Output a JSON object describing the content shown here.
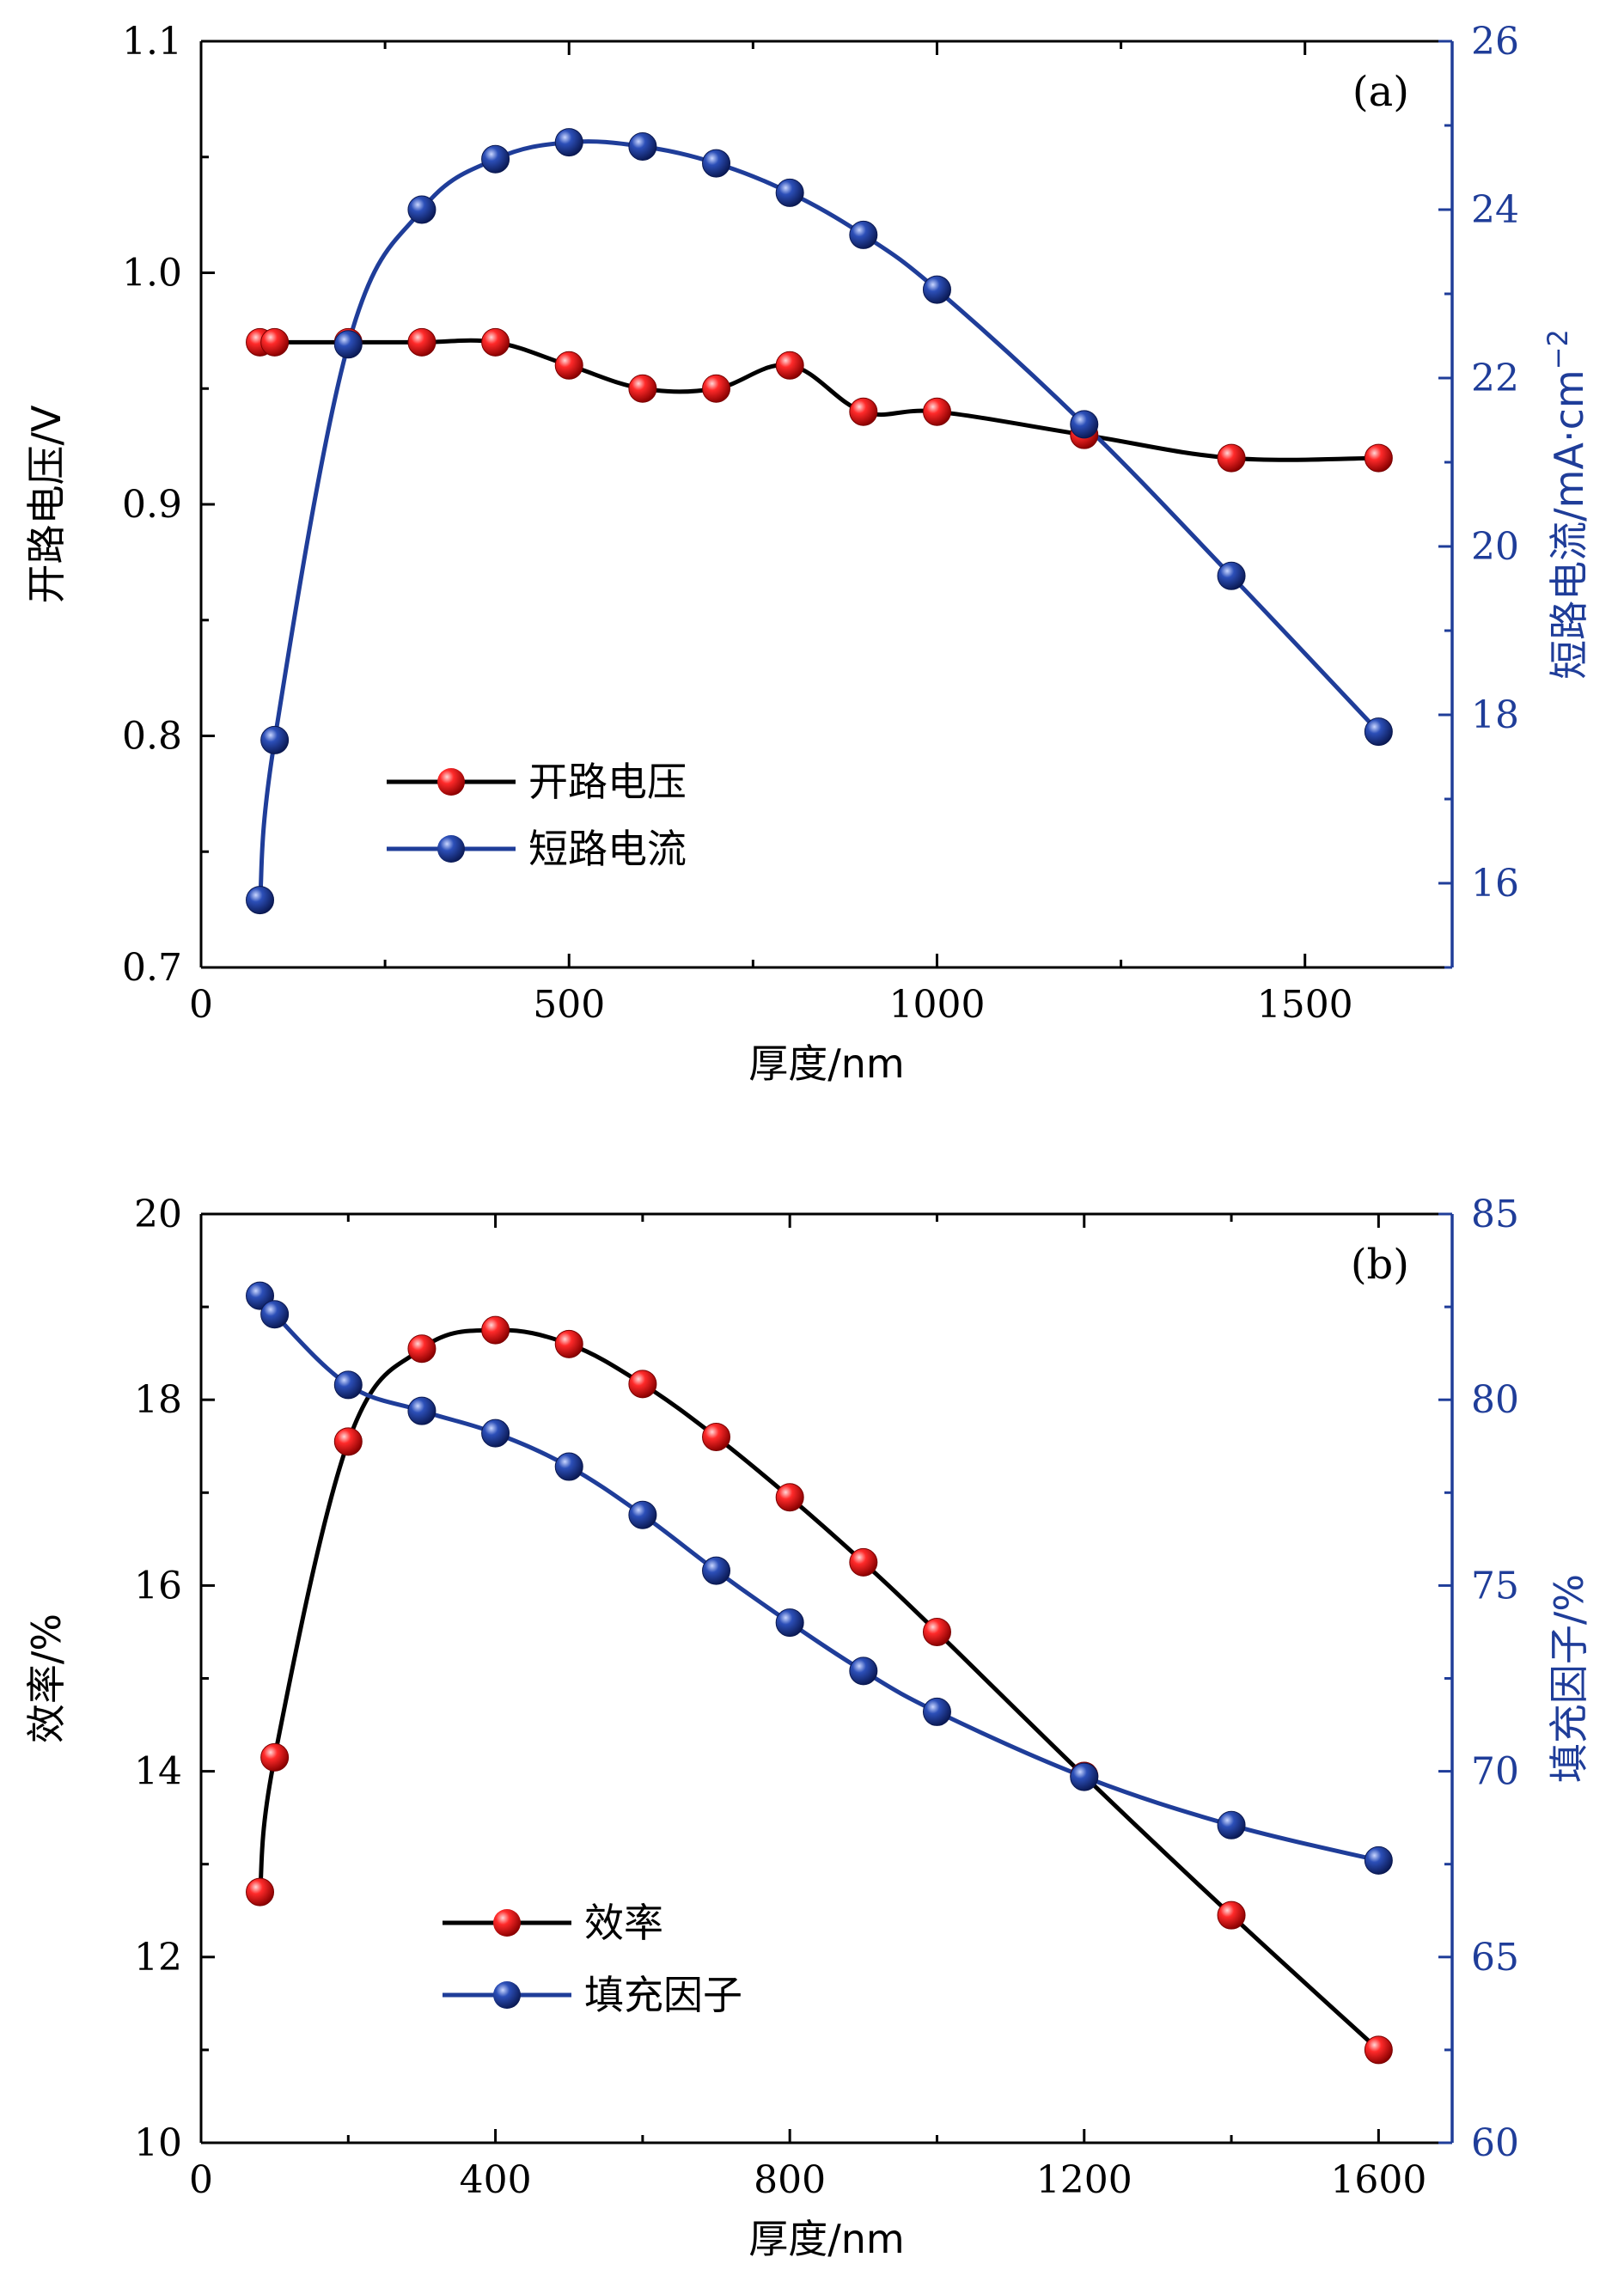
{
  "colors": {
    "black": "#000000",
    "blue": "#1f3d99",
    "red": "#e01010"
  },
  "chart_data": [
    {
      "type": "line",
      "panel_label": "(a)",
      "xlabel": "厚度/nm",
      "ylabel": "开路电压/V",
      "ylabel_right": "短路电流/mA·cm",
      "ylabel_right_sup": "−2",
      "xlim": [
        0,
        1700
      ],
      "ylim": [
        0.7,
        1.1
      ],
      "ylim_right": [
        15,
        26
      ],
      "x_ticks": [
        0,
        500,
        1000,
        1500
      ],
      "x_tick_labels": [
        "0",
        "500",
        "1000",
        "1500"
      ],
      "y_ticks": [
        0.7,
        0.8,
        0.9,
        1.0,
        1.1
      ],
      "y_tick_labels": [
        "0.7",
        "0.8",
        "0.9",
        "1.0",
        "1.1"
      ],
      "y_right_ticks": [
        16,
        18,
        20,
        22,
        24,
        26
      ],
      "y_right_tick_labels": [
        "16",
        "18",
        "20",
        "22",
        "24",
        "26"
      ],
      "legend_position": "bottom-left",
      "series": [
        {
          "name": "开路电压",
          "axis": "left",
          "color": "#000000",
          "marker": "red",
          "x": [
            80,
            100,
            200,
            300,
            400,
            500,
            600,
            700,
            800,
            900,
            1000,
            1200,
            1400,
            1600
          ],
          "y": [
            0.97,
            0.97,
            0.97,
            0.97,
            0.97,
            0.96,
            0.95,
            0.95,
            0.96,
            0.94,
            0.94,
            0.93,
            0.92,
            0.92
          ]
        },
        {
          "name": "短路电流",
          "axis": "right",
          "color": "#1f3d99",
          "marker": "blue",
          "x": [
            80,
            100,
            200,
            300,
            400,
            500,
            600,
            700,
            800,
            900,
            1000,
            1200,
            1400,
            1600
          ],
          "y": [
            15.8,
            17.7,
            22.4,
            24.0,
            24.6,
            24.8,
            24.75,
            24.55,
            24.2,
            23.7,
            23.05,
            21.45,
            19.65,
            17.8
          ]
        }
      ]
    },
    {
      "type": "line",
      "panel_label": "(b)",
      "xlabel": "厚度/nm",
      "ylabel": "效率/%",
      "ylabel_right": "填充因子/%",
      "xlim": [
        0,
        1700
      ],
      "ylim": [
        10,
        20
      ],
      "ylim_right": [
        60,
        85
      ],
      "x_ticks": [
        0,
        400,
        800,
        1200,
        1600
      ],
      "x_tick_labels": [
        "0",
        "400",
        "800",
        "1200",
        "1600"
      ],
      "y_ticks": [
        10,
        12,
        14,
        16,
        18,
        20
      ],
      "y_tick_labels": [
        "10",
        "12",
        "14",
        "16",
        "18",
        "20"
      ],
      "y_right_ticks": [
        60,
        65,
        70,
        75,
        80,
        85
      ],
      "y_right_tick_labels": [
        "60",
        "65",
        "70",
        "75",
        "80",
        "85"
      ],
      "legend_position": "bottom-left",
      "series": [
        {
          "name": "效率",
          "axis": "left",
          "color": "#000000",
          "marker": "red",
          "x": [
            80,
            100,
            200,
            300,
            400,
            500,
            600,
            700,
            800,
            900,
            1000,
            1200,
            1400,
            1600
          ],
          "y": [
            12.7,
            14.15,
            17.55,
            18.55,
            18.75,
            18.6,
            18.17,
            17.6,
            16.95,
            16.25,
            15.5,
            13.95,
            12.45,
            11.0
          ]
        },
        {
          "name": "填充因子",
          "axis": "right",
          "color": "#1f3d99",
          "marker": "blue",
          "x": [
            80,
            100,
            200,
            300,
            400,
            500,
            600,
            700,
            800,
            900,
            1000,
            1200,
            1400,
            1600
          ],
          "y": [
            82.8,
            82.3,
            80.4,
            79.7,
            79.1,
            78.2,
            76.9,
            75.4,
            74.0,
            72.7,
            71.6,
            69.85,
            68.55,
            67.6
          ]
        }
      ]
    }
  ]
}
